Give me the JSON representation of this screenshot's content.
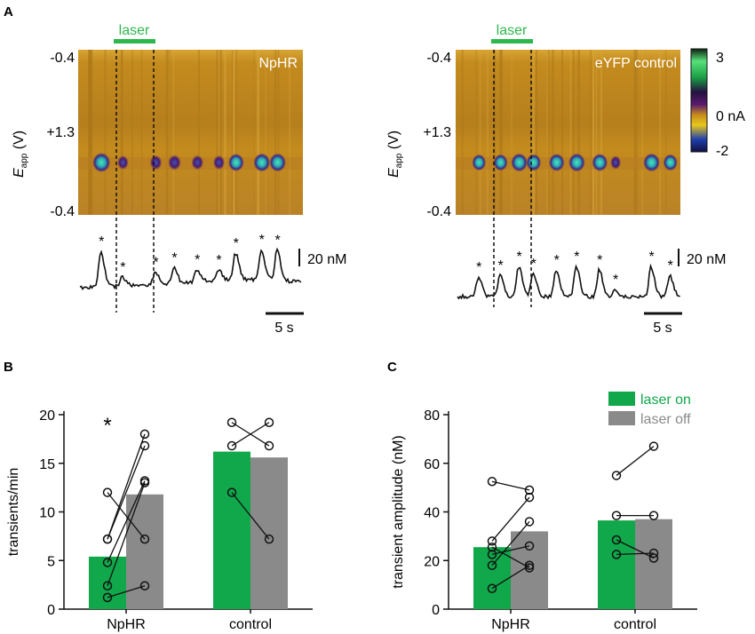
{
  "colors": {
    "laser_bar": "#2db84d",
    "laser_on": "#10a84a",
    "laser_off": "#8a8a8a",
    "heat_bg": "#c48b1e",
    "heat_band": "#4c1a6e",
    "heat_peak": "#35c8a0",
    "trace": "#111111"
  },
  "panel_a": {
    "letter": "A",
    "laser_label": "laser",
    "y_axis_label_main": "E",
    "y_axis_label_sub": "app",
    "y_axis_label_unit": " (V)",
    "y_ticks": [
      "-0.4",
      "+1.3",
      "-0.4"
    ],
    "scale_conc": "20 nM",
    "scale_time": "5 s",
    "colorbar": {
      "min_label": "-2",
      "zero_label": "0 nA",
      "max_label": "3",
      "min": -2,
      "max": 3
    },
    "plots": [
      {
        "label": "NpHR",
        "laser_window_s": [
          2.6,
          5.3
        ],
        "transient_times_s": [
          1.5,
          3.0,
          5.3,
          6.6,
          8.2,
          9.7,
          10.9,
          12.7,
          13.8
        ],
        "transient_heights": [
          1.0,
          0.25,
          0.35,
          0.45,
          0.35,
          0.3,
          0.75,
          0.85,
          0.85
        ],
        "baseline_drift": [
          0.0,
          0.05,
          0.1,
          0.15,
          0.25,
          0.3,
          0.3,
          0.2
        ]
      },
      {
        "label": "eYFP control",
        "laser_window_s": [
          2.6,
          5.3
        ],
        "transient_times_s": [
          1.5,
          3.0,
          4.3,
          5.3,
          6.9,
          8.3,
          9.9,
          11.0,
          13.5,
          14.8
        ],
        "transient_heights": [
          0.55,
          0.6,
          0.85,
          0.65,
          0.75,
          0.85,
          0.75,
          0.2,
          0.85,
          0.6
        ],
        "baseline_drift": [
          0.0,
          0.0,
          0.0,
          0.0,
          0.0,
          0.0,
          0.0,
          0.0
        ]
      }
    ]
  },
  "chart_data": [
    {
      "type": "bar",
      "panel": "B",
      "ylabel": "transients/min",
      "xlabel": "",
      "categories": [
        "NpHR",
        "control"
      ],
      "ylim": [
        0,
        20
      ],
      "yticks": [
        0,
        5,
        10,
        15,
        20
      ],
      "series": [
        {
          "name": "laser on",
          "values": [
            5.4,
            16.2
          ]
        },
        {
          "name": "laser off",
          "values": [
            11.8,
            15.6
          ]
        }
      ],
      "paired_points": [
        [
          [
            1.2,
            2.4
          ],
          [
            2.4,
            13.0
          ],
          [
            4.8,
            13.2
          ],
          [
            7.2,
            16.8
          ],
          [
            7.2,
            18.0
          ],
          [
            12.0,
            7.2
          ]
        ],
        [
          [
            12.0,
            7.2
          ],
          [
            16.8,
            19.2
          ],
          [
            19.2,
            16.8
          ]
        ]
      ],
      "annotation": "*"
    },
    {
      "type": "bar",
      "panel": "C",
      "ylabel": "transient amplitude (nM)",
      "xlabel": "",
      "categories": [
        "NpHR",
        "control"
      ],
      "ylim": [
        0,
        80
      ],
      "yticks": [
        0,
        20,
        40,
        60,
        80
      ],
      "legend": [
        "laser on",
        "laser off"
      ],
      "series": [
        {
          "name": "laser on",
          "values": [
            25.5,
            36.5
          ]
        },
        {
          "name": "laser off",
          "values": [
            32.0,
            37.0
          ]
        }
      ],
      "paired_points": [
        [
          [
            8.5,
            18.0
          ],
          [
            18.0,
            36.0
          ],
          [
            22.5,
            26.0
          ],
          [
            28.0,
            46.0
          ],
          [
            52.5,
            49.0
          ],
          [
            25.5,
            17.0
          ]
        ],
        [
          [
            55.0,
            67.0
          ],
          [
            38.5,
            38.5
          ],
          [
            28.5,
            21.0
          ],
          [
            22.5,
            23.0
          ]
        ]
      ]
    }
  ]
}
